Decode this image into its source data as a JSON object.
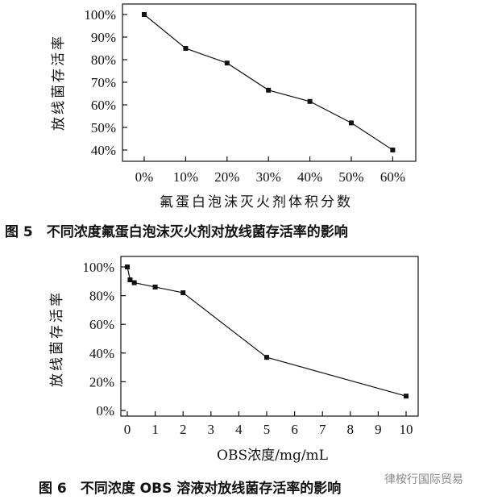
{
  "chart_data": [
    {
      "type": "line",
      "caption": "图 5　不同浓度氟蛋白泡沫灭火剂对放线菌存活率的影响",
      "xlabel": "氟蛋白泡沫灭火剂体积分数",
      "ylabel": "放线菌存活率",
      "x_ticks": [
        "0%",
        "10%",
        "20%",
        "30%",
        "40%",
        "50%",
        "60%"
      ],
      "y_ticks": [
        "40%",
        "50%",
        "60%",
        "70%",
        "80%",
        "90%",
        "100%"
      ],
      "ylim": [
        40,
        100
      ],
      "series": [
        {
          "x": [
            0,
            10,
            20,
            30,
            40,
            50,
            60
          ],
          "values": [
            100,
            85,
            78.5,
            66.5,
            61.5,
            52,
            40
          ]
        }
      ]
    },
    {
      "type": "line",
      "caption": "图 6　不同浓度 OBS 溶液对放线菌存活率的影响",
      "xlabel": "OBS浓度/mg/mL",
      "ylabel": "放线菌存活率",
      "x_ticks": [
        "0",
        "1",
        "2",
        "3",
        "4",
        "5",
        "6",
        "7",
        "8",
        "9",
        "10"
      ],
      "y_ticks": [
        "0%",
        "20%",
        "40%",
        "60%",
        "80%",
        "100%"
      ],
      "xlim": [
        -0.3,
        10.4
      ],
      "ylim": [
        0,
        100
      ],
      "series": [
        {
          "x": [
            0,
            0.1,
            0.25,
            1,
            2,
            5,
            10
          ],
          "values": [
            100,
            91,
            89,
            86,
            82,
            37,
            10
          ]
        }
      ]
    }
  ],
  "watermark": "律桉行国际贸易"
}
